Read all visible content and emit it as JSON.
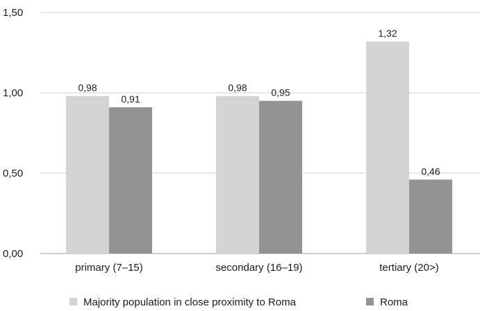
{
  "chart_data": {
    "type": "bar",
    "categories": [
      "primary (7–15)",
      "secondary (16–19)",
      "tertiary (20>)"
    ],
    "series": [
      {
        "name": "Majority population in close proximity to Roma",
        "values": [
          0.98,
          0.98,
          1.32
        ],
        "labels": [
          "0,98",
          "0,98",
          "1,32"
        ],
        "color": "#d4d4d4"
      },
      {
        "name": "Roma",
        "values": [
          0.91,
          0.95,
          0.46
        ],
        "labels": [
          "0,91",
          "0,95",
          "0,46"
        ],
        "color": "#939393"
      }
    ],
    "yticks": [
      0,
      0.5,
      1.0,
      1.5
    ],
    "ytick_labels": [
      "0,00",
      "0,50",
      "1,00",
      "1,50"
    ],
    "ylim": [
      0,
      1.5
    ],
    "grid": "horizontal",
    "legend_position": "bottom",
    "title": "",
    "xlabel": "",
    "ylabel": ""
  }
}
